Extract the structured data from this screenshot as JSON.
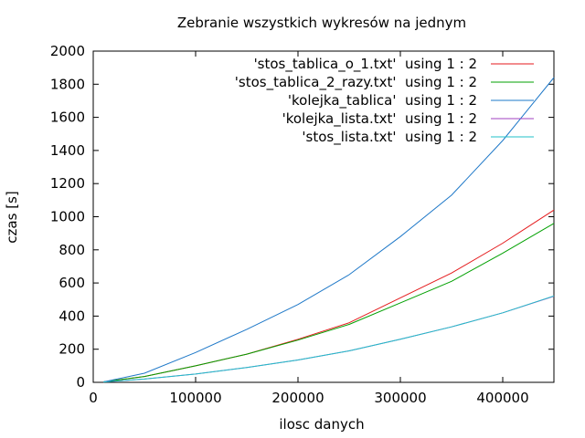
{
  "chart_data": {
    "type": "line",
    "title": "Zebranie wszystkich wykresów na jednym",
    "xlabel": "ilosc danych",
    "ylabel": "czas [s]",
    "xlim": [
      0,
      450000
    ],
    "ylim": [
      0,
      2000
    ],
    "x_ticks": [
      0,
      100000,
      200000,
      300000,
      400000
    ],
    "y_ticks": [
      0,
      200,
      400,
      600,
      800,
      1000,
      1200,
      1400,
      1600,
      1800,
      2000
    ],
    "grid": false,
    "legend_position": "top-right",
    "series": [
      {
        "name": "'stos_tablica_o_1.txt'  using 1 : 2",
        "color": "#e41a1c",
        "x": [
          10000,
          50000,
          100000,
          150000,
          200000,
          250000,
          300000,
          350000,
          400000,
          450000
        ],
        "y": [
          3,
          35,
          100,
          170,
          260,
          360,
          510,
          660,
          840,
          1040
        ]
      },
      {
        "name": "'stos_tablica_2_razy.txt'  using 1 : 2",
        "color": "#00a000",
        "x": [
          10000,
          50000,
          100000,
          150000,
          200000,
          250000,
          300000,
          350000,
          400000,
          450000
        ],
        "y": [
          3,
          35,
          100,
          170,
          255,
          350,
          480,
          610,
          780,
          960
        ]
      },
      {
        "name": "'kolejka_tablica'  using 1 : 2",
        "color": "#1e78c8",
        "x": [
          10000,
          50000,
          100000,
          150000,
          200000,
          250000,
          300000,
          350000,
          400000,
          450000
        ],
        "y": [
          3,
          55,
          180,
          320,
          470,
          650,
          880,
          1130,
          1460,
          1840
        ]
      },
      {
        "name": "'kolejka_lista.txt'  using 1 : 2",
        "color": "#a040c0",
        "x": [
          10000,
          50000,
          100000,
          150000,
          200000,
          250000,
          300000,
          350000,
          400000,
          450000
        ],
        "y": [
          2,
          20,
          50,
          90,
          135,
          190,
          260,
          335,
          420,
          520
        ]
      },
      {
        "name": "'stos_lista.txt'  using 1 : 2",
        "color": "#20c0c8",
        "x": [
          10000,
          50000,
          100000,
          150000,
          200000,
          250000,
          300000,
          350000,
          400000,
          450000
        ],
        "y": [
          2,
          20,
          50,
          90,
          135,
          190,
          260,
          335,
          420,
          522
        ]
      }
    ]
  }
}
